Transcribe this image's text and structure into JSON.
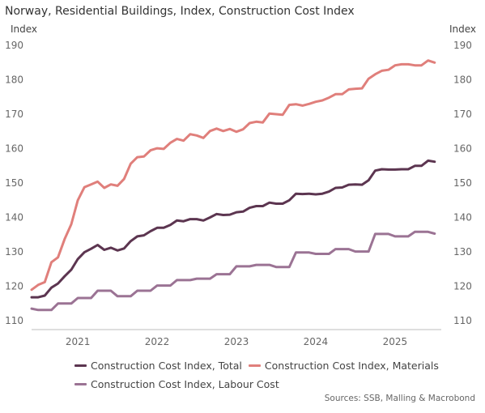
{
  "chart_data": {
    "type": "line",
    "title": "Norway, Residential Buildings, Index, Construction Cost Index",
    "ylabel_left": "Index",
    "ylabel_right": "Index",
    "ylim": [
      110,
      190
    ],
    "yticks": [
      110,
      120,
      130,
      140,
      150,
      160,
      170,
      180,
      190
    ],
    "xlim": [
      "2020-09",
      "2025-11"
    ],
    "xticks": [
      {
        "label": "2021",
        "date": "2021-04"
      },
      {
        "label": "2022",
        "date": "2022-04"
      },
      {
        "label": "2023",
        "date": "2023-04"
      },
      {
        "label": "2024",
        "date": "2024-04"
      },
      {
        "label": "2025",
        "date": "2025-04"
      }
    ],
    "grid": false,
    "legend_position": "bottom",
    "source": "Sources: SSB, Malling & Macrobond",
    "series": [
      {
        "name": "Construction Cost Index, Total",
        "color": "#5c3550",
        "dates": [
          "2020-09",
          "2020-10",
          "2020-11",
          "2020-12",
          "2021-01",
          "2021-02",
          "2021-03",
          "2021-04",
          "2021-05",
          "2021-06",
          "2021-07",
          "2021-08",
          "2021-09",
          "2021-10",
          "2021-11",
          "2021-12",
          "2022-01",
          "2022-02",
          "2022-03",
          "2022-04",
          "2022-05",
          "2022-06",
          "2022-07",
          "2022-08",
          "2022-09",
          "2022-10",
          "2022-11",
          "2022-12",
          "2023-01",
          "2023-02",
          "2023-03",
          "2023-04",
          "2023-05",
          "2023-06",
          "2023-07",
          "2023-08",
          "2023-09",
          "2023-10",
          "2023-11",
          "2023-12",
          "2024-01",
          "2024-02",
          "2024-03",
          "2024-04",
          "2024-05",
          "2024-06",
          "2024-07",
          "2024-08",
          "2024-09",
          "2024-10",
          "2024-11",
          "2024-12",
          "2025-01",
          "2025-02",
          "2025-03",
          "2025-04",
          "2025-05",
          "2025-06",
          "2025-07",
          "2025-08",
          "2025-09",
          "2025-10"
        ],
        "values": [
          116.8,
          116.8,
          117.3,
          119.6,
          120.8,
          122.9,
          124.8,
          127.9,
          129.9,
          130.9,
          132.0,
          130.6,
          131.2,
          130.4,
          131.0,
          133.1,
          134.5,
          134.8,
          136.0,
          137.0,
          137.0,
          137.8,
          139.1,
          138.9,
          139.5,
          139.5,
          139.1,
          140.0,
          141.0,
          140.7,
          140.8,
          141.5,
          141.7,
          142.8,
          143.3,
          143.3,
          144.3,
          144.0,
          144.0,
          145.0,
          146.9,
          146.8,
          146.9,
          146.7,
          146.9,
          147.5,
          148.6,
          148.7,
          149.5,
          149.6,
          149.5,
          150.8,
          153.6,
          154.0,
          153.9,
          153.9,
          154.0,
          154.0,
          155.0,
          155.0,
          156.5,
          156.2
        ]
      },
      {
        "name": "Construction Cost Index, Materials",
        "color": "#e07f7b",
        "dates": [
          "2020-09",
          "2020-10",
          "2020-11",
          "2020-12",
          "2021-01",
          "2021-02",
          "2021-03",
          "2021-04",
          "2021-05",
          "2021-06",
          "2021-07",
          "2021-08",
          "2021-09",
          "2021-10",
          "2021-11",
          "2021-12",
          "2022-01",
          "2022-02",
          "2022-03",
          "2022-04",
          "2022-05",
          "2022-06",
          "2022-07",
          "2022-08",
          "2022-09",
          "2022-10",
          "2022-11",
          "2022-12",
          "2023-01",
          "2023-02",
          "2023-03",
          "2023-04",
          "2023-05",
          "2023-06",
          "2023-07",
          "2023-08",
          "2023-09",
          "2023-10",
          "2023-11",
          "2023-12",
          "2024-01",
          "2024-02",
          "2024-03",
          "2024-04",
          "2024-05",
          "2024-06",
          "2024-07",
          "2024-08",
          "2024-09",
          "2024-10",
          "2024-11",
          "2024-12",
          "2025-01",
          "2025-02",
          "2025-03",
          "2025-04",
          "2025-05",
          "2025-06",
          "2025-07",
          "2025-08",
          "2025-09",
          "2025-10"
        ],
        "values": [
          119.0,
          120.4,
          121.2,
          127.0,
          128.4,
          133.7,
          138.0,
          145.0,
          148.8,
          149.6,
          150.4,
          148.6,
          149.6,
          149.2,
          151.2,
          155.6,
          157.5,
          157.7,
          159.5,
          160.1,
          159.9,
          161.7,
          162.8,
          162.3,
          164.2,
          163.8,
          163.1,
          165.1,
          165.8,
          165.1,
          165.7,
          164.9,
          165.6,
          167.4,
          167.8,
          167.6,
          170.2,
          170.0,
          169.8,
          172.7,
          172.9,
          172.5,
          173.0,
          173.6,
          174.0,
          174.8,
          175.8,
          175.8,
          177.2,
          177.4,
          177.5,
          180.3,
          181.6,
          182.6,
          182.9,
          184.2,
          184.5,
          184.5,
          184.2,
          184.2,
          185.6,
          185.0
        ]
      },
      {
        "name": "Construction Cost Index, Labour Cost",
        "color": "#9b7394",
        "dates": [
          "2020-09",
          "2020-10",
          "2020-11",
          "2020-12",
          "2021-01",
          "2021-02",
          "2021-03",
          "2021-04",
          "2021-05",
          "2021-06",
          "2021-07",
          "2021-08",
          "2021-09",
          "2021-10",
          "2021-11",
          "2021-12",
          "2022-01",
          "2022-02",
          "2022-03",
          "2022-04",
          "2022-05",
          "2022-06",
          "2022-07",
          "2022-08",
          "2022-09",
          "2022-10",
          "2022-11",
          "2022-12",
          "2023-01",
          "2023-02",
          "2023-03",
          "2023-04",
          "2023-05",
          "2023-06",
          "2023-07",
          "2023-08",
          "2023-09",
          "2023-10",
          "2023-11",
          "2023-12",
          "2024-01",
          "2024-02",
          "2024-03",
          "2024-04",
          "2024-05",
          "2024-06",
          "2024-07",
          "2024-08",
          "2024-09",
          "2024-10",
          "2024-11",
          "2024-12",
          "2025-01",
          "2025-02",
          "2025-03",
          "2025-04",
          "2025-05",
          "2025-06",
          "2025-07",
          "2025-08",
          "2025-09",
          "2025-10"
        ],
        "values": [
          113.5,
          113.1,
          113.1,
          113.1,
          115.0,
          115.0,
          115.0,
          116.6,
          116.6,
          116.6,
          118.7,
          118.7,
          118.7,
          117.1,
          117.1,
          117.1,
          118.7,
          118.7,
          118.7,
          120.2,
          120.2,
          120.2,
          121.8,
          121.8,
          121.8,
          122.2,
          122.2,
          122.2,
          123.5,
          123.5,
          123.5,
          125.8,
          125.8,
          125.8,
          126.2,
          126.2,
          126.2,
          125.6,
          125.6,
          125.6,
          129.8,
          129.8,
          129.8,
          129.4,
          129.4,
          129.4,
          130.8,
          130.8,
          130.8,
          130.1,
          130.1,
          130.1,
          135.2,
          135.2,
          135.2,
          134.5,
          134.5,
          134.5,
          135.8,
          135.8,
          135.8,
          135.3
        ]
      }
    ]
  },
  "legend": {
    "total": "Construction Cost Index, Total",
    "materials": "Construction Cost Index, Materials",
    "labour": "Construction Cost Index, Labour Cost"
  }
}
